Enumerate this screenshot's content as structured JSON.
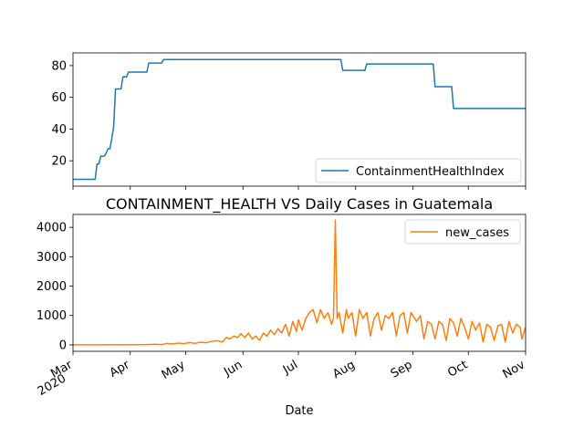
{
  "chart_data": [
    {
      "type": "line",
      "title": "",
      "xlabel": "",
      "ylabel": "",
      "ylim": [
        4,
        88
      ],
      "yticks": [
        20,
        40,
        60,
        80
      ],
      "grid": false,
      "legend_position": "lower-right",
      "series": [
        {
          "name": "ContainmentHealthIndex",
          "color": "#1f77b4",
          "points": [
            [
              "2020-03-01",
              8.3
            ],
            [
              "2020-03-13",
              8.3
            ],
            [
              "2020-03-14",
              18
            ],
            [
              "2020-03-15",
              18
            ],
            [
              "2020-03-16",
              22.9
            ],
            [
              "2020-03-17",
              22.9
            ],
            [
              "2020-03-18",
              22.9
            ],
            [
              "2020-03-19",
              25
            ],
            [
              "2020-03-20",
              27.6
            ],
            [
              "2020-03-21",
              27.6
            ],
            [
              "2020-03-22",
              34
            ],
            [
              "2020-03-23",
              41.3
            ],
            [
              "2020-03-24",
              65.3
            ],
            [
              "2020-03-27",
              65.3
            ],
            [
              "2020-03-28",
              72.9
            ],
            [
              "2020-03-30",
              72.9
            ],
            [
              "2020-03-31",
              75.9
            ],
            [
              "2020-04-10",
              75.9
            ],
            [
              "2020-04-11",
              81.6
            ],
            [
              "2020-04-18",
              81.6
            ],
            [
              "2020-04-19",
              83.8
            ],
            [
              "2020-07-24",
              83.8
            ],
            [
              "2020-07-25",
              77
            ],
            [
              "2020-08-06",
              77
            ],
            [
              "2020-08-07",
              81
            ],
            [
              "2020-09-12",
              81
            ],
            [
              "2020-09-13",
              66.7
            ],
            [
              "2020-09-22",
              66.7
            ],
            [
              "2020-09-23",
              53
            ],
            [
              "2020-11-01",
              53
            ]
          ]
        }
      ]
    },
    {
      "type": "line",
      "title": "CONTAINMENT_HEALTH VS Daily Cases in Guatemala",
      "xlabel": "Date",
      "ylabel": "",
      "ylim": [
        -220,
        4440
      ],
      "yticks": [
        0,
        1000,
        2000,
        3000,
        4000
      ],
      "grid": false,
      "legend_position": "upper-right",
      "xlim": [
        "2020-03-01",
        "2020-11-01"
      ],
      "xticks": [
        {
          "date": "2020-03-01",
          "label": "Mar",
          "sublabel": "2020"
        },
        {
          "date": "2020-04-01",
          "label": "Apr"
        },
        {
          "date": "2020-05-01",
          "label": "May"
        },
        {
          "date": "2020-06-01",
          "label": "Jun"
        },
        {
          "date": "2020-07-01",
          "label": "Jul"
        },
        {
          "date": "2020-08-01",
          "label": "Aug"
        },
        {
          "date": "2020-09-01",
          "label": "Sep"
        },
        {
          "date": "2020-10-01",
          "label": "Oct"
        },
        {
          "date": "2020-11-01",
          "label": "Nov"
        }
      ],
      "series": [
        {
          "name": "new_cases",
          "color": "#ff7f0e",
          "points": [
            [
              "2020-03-01",
              0
            ],
            [
              "2020-03-15",
              2
            ],
            [
              "2020-03-31",
              5
            ],
            [
              "2020-04-10",
              8
            ],
            [
              "2020-04-15",
              20
            ],
            [
              "2020-04-18",
              10
            ],
            [
              "2020-04-21",
              50
            ],
            [
              "2020-04-24",
              30
            ],
            [
              "2020-04-27",
              60
            ],
            [
              "2020-04-30",
              40
            ],
            [
              "2020-05-03",
              80
            ],
            [
              "2020-05-06",
              50
            ],
            [
              "2020-05-09",
              90
            ],
            [
              "2020-05-12",
              70
            ],
            [
              "2020-05-15",
              120
            ],
            [
              "2020-05-18",
              140
            ],
            [
              "2020-05-21",
              100
            ],
            [
              "2020-05-23",
              250
            ],
            [
              "2020-05-25",
              200
            ],
            [
              "2020-05-27",
              300
            ],
            [
              "2020-05-29",
              250
            ],
            [
              "2020-05-31",
              380
            ],
            [
              "2020-06-02",
              250
            ],
            [
              "2020-06-04",
              400
            ],
            [
              "2020-06-06",
              200
            ],
            [
              "2020-06-08",
              300
            ],
            [
              "2020-06-10",
              150
            ],
            [
              "2020-06-12",
              400
            ],
            [
              "2020-06-14",
              300
            ],
            [
              "2020-06-16",
              500
            ],
            [
              "2020-06-18",
              350
            ],
            [
              "2020-06-20",
              550
            ],
            [
              "2020-06-22",
              400
            ],
            [
              "2020-06-24",
              700
            ],
            [
              "2020-06-26",
              300
            ],
            [
              "2020-06-28",
              800
            ],
            [
              "2020-06-30",
              450
            ],
            [
              "2020-07-01",
              850
            ],
            [
              "2020-07-03",
              500
            ],
            [
              "2020-07-05",
              900
            ],
            [
              "2020-07-07",
              1100
            ],
            [
              "2020-07-09",
              1200
            ],
            [
              "2020-07-11",
              750
            ],
            [
              "2020-07-13",
              1200
            ],
            [
              "2020-07-15",
              900
            ],
            [
              "2020-07-17",
              1100
            ],
            [
              "2020-07-19",
              700
            ],
            [
              "2020-07-20",
              900
            ],
            [
              "2020-07-21",
              4250
            ],
            [
              "2020-07-22",
              900
            ],
            [
              "2020-07-23",
              1100
            ],
            [
              "2020-07-25",
              400
            ],
            [
              "2020-07-27",
              1200
            ],
            [
              "2020-07-28",
              900
            ],
            [
              "2020-07-30",
              1100
            ],
            [
              "2020-08-01",
              300
            ],
            [
              "2020-08-03",
              1200
            ],
            [
              "2020-08-05",
              900
            ],
            [
              "2020-08-07",
              1100
            ],
            [
              "2020-08-09",
              300
            ],
            [
              "2020-08-11",
              900
            ],
            [
              "2020-08-13",
              1100
            ],
            [
              "2020-08-15",
              500
            ],
            [
              "2020-08-17",
              1000
            ],
            [
              "2020-08-19",
              900
            ],
            [
              "2020-08-21",
              1100
            ],
            [
              "2020-08-23",
              300
            ],
            [
              "2020-08-25",
              1000
            ],
            [
              "2020-08-27",
              1100
            ],
            [
              "2020-08-29",
              400
            ],
            [
              "2020-08-31",
              1100
            ],
            [
              "2020-09-03",
              800
            ],
            [
              "2020-09-05",
              1000
            ],
            [
              "2020-09-07",
              200
            ],
            [
              "2020-09-09",
              800
            ],
            [
              "2020-09-11",
              700
            ],
            [
              "2020-09-13",
              200
            ],
            [
              "2020-09-15",
              800
            ],
            [
              "2020-09-17",
              700
            ],
            [
              "2020-09-19",
              150
            ],
            [
              "2020-09-21",
              900
            ],
            [
              "2020-09-23",
              750
            ],
            [
              "2020-09-25",
              300
            ],
            [
              "2020-09-27",
              900
            ],
            [
              "2020-09-29",
              600
            ],
            [
              "2020-10-01",
              200
            ],
            [
              "2020-10-03",
              800
            ],
            [
              "2020-10-05",
              500
            ],
            [
              "2020-10-07",
              750
            ],
            [
              "2020-10-09",
              100
            ],
            [
              "2020-10-11",
              700
            ],
            [
              "2020-10-13",
              600
            ],
            [
              "2020-10-15",
              150
            ],
            [
              "2020-10-17",
              650
            ],
            [
              "2020-10-19",
              700
            ],
            [
              "2020-10-21",
              100
            ],
            [
              "2020-10-23",
              800
            ],
            [
              "2020-10-25",
              400
            ],
            [
              "2020-10-27",
              700
            ],
            [
              "2020-10-29",
              600
            ],
            [
              "2020-10-30",
              200
            ],
            [
              "2020-11-01",
              600
            ]
          ]
        }
      ]
    }
  ]
}
